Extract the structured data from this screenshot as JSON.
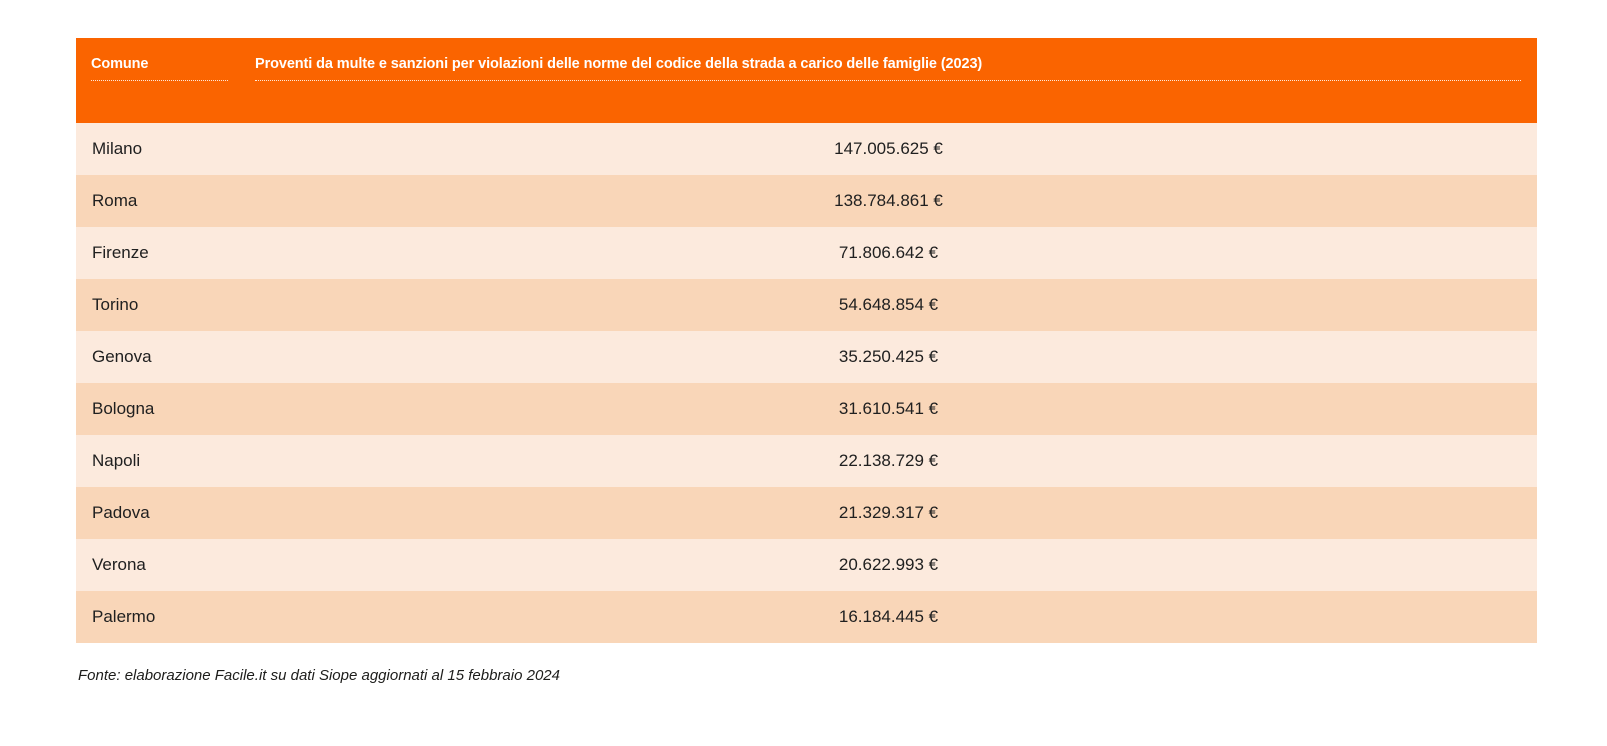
{
  "colors": {
    "header_bg": "#fa6400",
    "header_text": "#ffffff",
    "row_odd_bg": "#fceadd",
    "row_even_bg": "#f9d6b8",
    "body_text": "#202020"
  },
  "table": {
    "header": {
      "comune_label": "Comune",
      "value_label": "Proventi da multe e sanzioni per violazioni delle norme del codice della strada a carico delle famiglie (2023)"
    },
    "rows": [
      {
        "comune": "Milano",
        "value": "147.005.625 €"
      },
      {
        "comune": "Roma",
        "value": "138.784.861 €"
      },
      {
        "comune": "Firenze",
        "value": "71.806.642 €"
      },
      {
        "comune": "Torino",
        "value": "54.648.854 €"
      },
      {
        "comune": "Genova",
        "value": "35.250.425 €"
      },
      {
        "comune": "Bologna",
        "value": "31.610.541 €"
      },
      {
        "comune": "Napoli",
        "value": "22.138.729 €"
      },
      {
        "comune": "Padova",
        "value": "21.329.317 €"
      },
      {
        "comune": "Verona",
        "value": "20.622.993 €"
      },
      {
        "comune": "Palermo",
        "value": "16.184.445 €"
      }
    ]
  },
  "footer": {
    "source_note": "Fonte: elaborazione Facile.it su dati Siope aggiornati al 15 febbraio 2024"
  },
  "chart_data": {
    "type": "table",
    "title": "Proventi da multe e sanzioni per violazioni delle norme del codice della strada a carico delle famiglie (2023)",
    "categories": [
      "Milano",
      "Roma",
      "Firenze",
      "Torino",
      "Genova",
      "Bologna",
      "Napoli",
      "Padova",
      "Verona",
      "Palermo"
    ],
    "values": [
      147005625,
      138784861,
      71806642,
      54648854,
      35250425,
      31610541,
      22138729,
      21329317,
      20622993,
      16184445
    ],
    "unit": "EUR",
    "value_format": "it-IT thousands dot, suffix €",
    "source": "Fonte: elaborazione Facile.it su dati Siope aggiornati al 15 febbraio 2024"
  }
}
